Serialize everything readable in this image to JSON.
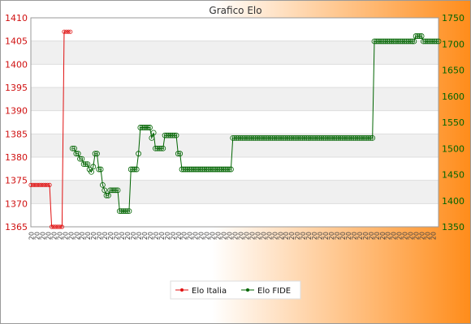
{
  "chart_data": {
    "type": "line",
    "title": "Grafico Elo",
    "x_tick_label_pattern": "20",
    "left_axis": {
      "ylim": [
        1365,
        1410
      ],
      "ticks": [
        1365,
        1370,
        1375,
        1380,
        1385,
        1390,
        1395,
        1400,
        1405,
        1410
      ]
    },
    "right_axis": {
      "ylim": [
        1350,
        1750
      ],
      "ticks": [
        1350,
        1400,
        1450,
        1500,
        1550,
        1600,
        1650,
        1700,
        1750
      ]
    },
    "grid": true,
    "legend_position": "bottom",
    "series": [
      {
        "name": "Elo Italia",
        "axis": "left",
        "color": "#e01010",
        "values": [
          1374,
          1374,
          1374,
          1374,
          1374,
          1374,
          1374,
          1374,
          1374,
          1374,
          1365,
          1365,
          1365,
          1365,
          1365,
          1365,
          1407,
          1407,
          1407,
          1407
        ]
      },
      {
        "name": "Elo FIDE",
        "axis": "right",
        "color": "#006400",
        "values": [
          1500,
          1500,
          1490,
          1490,
          1480,
          1480,
          1470,
          1470,
          1470,
          1460,
          1455,
          1465,
          1490,
          1490,
          1460,
          1460,
          1430,
          1420,
          1410,
          1410,
          1420,
          1420,
          1420,
          1420,
          1420,
          1380,
          1380,
          1380,
          1380,
          1380,
          1380,
          1460,
          1460,
          1460,
          1460,
          1490,
          1540,
          1540,
          1540,
          1540,
          1540,
          1540,
          1520,
          1530,
          1500,
          1500,
          1500,
          1500,
          1500,
          1525,
          1525,
          1525,
          1525,
          1525,
          1525,
          1525,
          1490,
          1490,
          1460,
          1460,
          1460,
          1460,
          1460,
          1460,
          1460,
          1460,
          1460,
          1460,
          1460,
          1460,
          1460,
          1460,
          1460,
          1460,
          1460,
          1460,
          1460,
          1460,
          1460,
          1460,
          1460,
          1460,
          1460,
          1460,
          1460,
          1520,
          1520,
          1520,
          1520,
          1520,
          1520,
          1520,
          1520,
          1520,
          1520,
          1520,
          1520,
          1520,
          1520,
          1520,
          1520,
          1520,
          1520,
          1520,
          1520,
          1520,
          1520,
          1520,
          1520,
          1520,
          1520,
          1520,
          1520,
          1520,
          1520,
          1520,
          1520,
          1520,
          1520,
          1520,
          1520,
          1520,
          1520,
          1520,
          1520,
          1520,
          1520,
          1520,
          1520,
          1520,
          1520,
          1520,
          1520,
          1520,
          1520,
          1520,
          1520,
          1520,
          1520,
          1520,
          1520,
          1520,
          1520,
          1520,
          1520,
          1520,
          1520,
          1520,
          1520,
          1520,
          1520,
          1520,
          1520,
          1520,
          1520,
          1520,
          1520,
          1520,
          1520,
          1520,
          1705,
          1705,
          1705,
          1705,
          1705,
          1705,
          1705,
          1705,
          1705,
          1705,
          1705,
          1705,
          1705,
          1705,
          1705,
          1705,
          1705,
          1705,
          1705,
          1705,
          1705,
          1705,
          1715,
          1715,
          1715,
          1715,
          1705,
          1705,
          1705,
          1705,
          1705,
          1705,
          1705,
          1705,
          1705
        ]
      }
    ]
  }
}
